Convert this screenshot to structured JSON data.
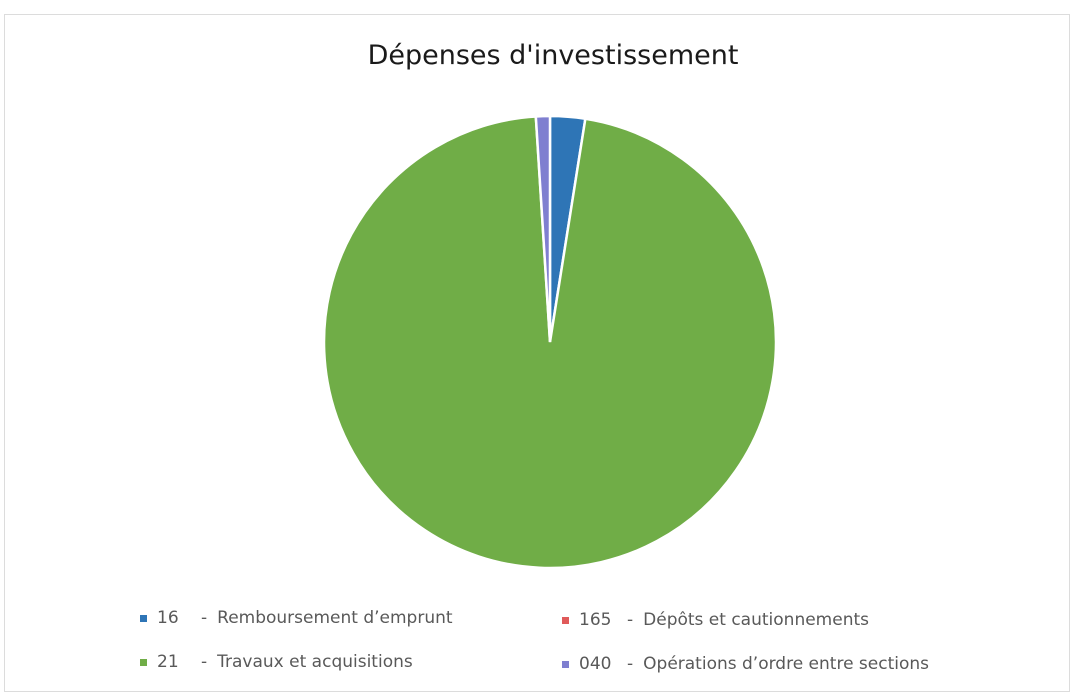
{
  "chart_data": {
    "type": "pie",
    "title": "Dépenses d'investissement",
    "slices": [
      {
        "code": "16",
        "label": "Remboursement d’emprunt",
        "value": 2.5,
        "color": "#2e75b6"
      },
      {
        "code": "21",
        "label": "Travaux et acquisitions",
        "value": 96.5,
        "color": "#70ad47"
      },
      {
        "code": "040",
        "label": "Opérations d’ordre entre sections",
        "value": 1.0,
        "color": "#7f7fd0"
      },
      {
        "code": "165",
        "label": "Dépôts et cautionnements",
        "value": 0.0,
        "color": "#e05a5a"
      }
    ],
    "legend": {
      "placement": "bottom",
      "items": [
        {
          "code": "16",
          "separator": "-",
          "label": "Remboursement d’emprunt",
          "color": "#2e75b6"
        },
        {
          "code": "165",
          "separator": "-",
          "label": "Dépôts et cautionnements",
          "color": "#e05a5a"
        },
        {
          "code": "21",
          "separator": "-",
          "label": "Travaux et acquisitions",
          "color": "#70ad47"
        },
        {
          "code": "040",
          "separator": "-",
          "label": "Opérations d’ordre entre sections",
          "color": "#7f7fd0"
        }
      ]
    }
  }
}
